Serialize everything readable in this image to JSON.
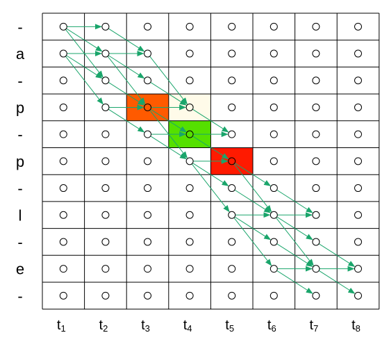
{
  "rows": [
    "-",
    "a",
    "-",
    "p",
    "-",
    "p",
    "-",
    "l",
    "-",
    "e",
    "-"
  ],
  "columns": [
    {
      "base": "t",
      "sub": "1"
    },
    {
      "base": "t",
      "sub": "2"
    },
    {
      "base": "t",
      "sub": "3"
    },
    {
      "base": "t",
      "sub": "4"
    },
    {
      "base": "t",
      "sub": "5"
    },
    {
      "base": "t",
      "sub": "6"
    },
    {
      "base": "t",
      "sub": "7"
    },
    {
      "base": "t",
      "sub": "8"
    }
  ],
  "colors": {
    "arrow": "#1aa56b",
    "node_stroke": "#000000",
    "grid": "#000000"
  },
  "highlighted_cells": [
    {
      "row": 3,
      "col": 2,
      "color": "#ff5a00"
    },
    {
      "row": 3,
      "col": 3,
      "color": "#fffbe9"
    },
    {
      "row": 4,
      "col": 3,
      "color": "#55e000"
    },
    {
      "row": 5,
      "col": 4,
      "color": "#ff1a00"
    }
  ],
  "transitions": [
    [
      0,
      0,
      0,
      1
    ],
    [
      0,
      0,
      1,
      1
    ],
    [
      0,
      0,
      2,
      1
    ],
    [
      1,
      0,
      1,
      1
    ],
    [
      1,
      0,
      2,
      1
    ],
    [
      1,
      0,
      3,
      1
    ],
    [
      0,
      1,
      1,
      2
    ],
    [
      1,
      1,
      1,
      2
    ],
    [
      1,
      1,
      2,
      2
    ],
    [
      1,
      1,
      3,
      2
    ],
    [
      2,
      1,
      3,
      2
    ],
    [
      3,
      1,
      3,
      2
    ],
    [
      3,
      1,
      4,
      2
    ],
    [
      1,
      2,
      3,
      3
    ],
    [
      2,
      2,
      3,
      3
    ],
    [
      3,
      2,
      3,
      3
    ],
    [
      3,
      2,
      4,
      3
    ],
    [
      3,
      2,
      5,
      3
    ],
    [
      4,
      2,
      4,
      3
    ],
    [
      4,
      2,
      5,
      3
    ],
    [
      3,
      3,
      4,
      4
    ],
    [
      4,
      3,
      4,
      4
    ],
    [
      4,
      3,
      5,
      4
    ],
    [
      5,
      3,
      5,
      4
    ],
    [
      5,
      3,
      6,
      4
    ],
    [
      5,
      3,
      7,
      4
    ],
    [
      5,
      4,
      6,
      5
    ],
    [
      5,
      4,
      7,
      5
    ],
    [
      6,
      4,
      7,
      5
    ],
    [
      7,
      4,
      7,
      5
    ],
    [
      7,
      4,
      8,
      5
    ],
    [
      7,
      4,
      9,
      5
    ],
    [
      6,
      5,
      7,
      6
    ],
    [
      7,
      5,
      7,
      6
    ],
    [
      7,
      5,
      8,
      6
    ],
    [
      7,
      5,
      9,
      6
    ],
    [
      8,
      5,
      9,
      6
    ],
    [
      9,
      5,
      9,
      6
    ],
    [
      9,
      5,
      10,
      6
    ],
    [
      8,
      6,
      9,
      7
    ],
    [
      9,
      6,
      9,
      7
    ],
    [
      9,
      6,
      10,
      7
    ]
  ]
}
